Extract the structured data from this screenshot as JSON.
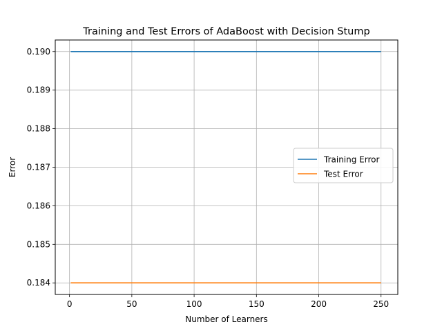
{
  "chart_data": {
    "type": "line",
    "title": "Training and Test Errors of AdaBoost with Decision Stump",
    "xlabel": "Number of Learners",
    "ylabel": "Error",
    "x_ticks": [
      0,
      50,
      100,
      150,
      200,
      250
    ],
    "y_ticks": [
      0.184,
      0.185,
      0.186,
      0.187,
      0.188,
      0.189,
      0.19
    ],
    "y_tick_labels": [
      "0.184",
      "0.185",
      "0.186",
      "0.187",
      "0.188",
      "0.189",
      "0.190"
    ],
    "xlim": [
      -11.45,
      263.45
    ],
    "ylim": [
      0.1837,
      0.1903
    ],
    "grid": true,
    "legend_position": "center-right",
    "series": [
      {
        "name": "Training Error",
        "color": "#1f77b4",
        "x": [
          1,
          250
        ],
        "y": [
          0.19,
          0.19
        ]
      },
      {
        "name": "Test Error",
        "color": "#ff7f0e",
        "x": [
          1,
          250
        ],
        "y": [
          0.184,
          0.184
        ]
      }
    ]
  }
}
